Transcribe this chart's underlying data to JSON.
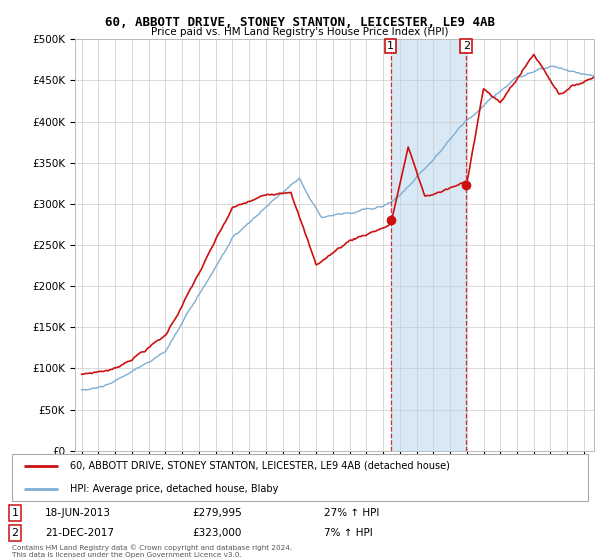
{
  "title": "60, ABBOTT DRIVE, STONEY STANTON, LEICESTER, LE9 4AB",
  "subtitle": "Price paid vs. HM Land Registry's House Price Index (HPI)",
  "ylim": [
    0,
    500000
  ],
  "yticks": [
    0,
    50000,
    100000,
    150000,
    200000,
    250000,
    300000,
    350000,
    400000,
    450000,
    500000
  ],
  "ytick_labels": [
    "£0",
    "£50K",
    "£100K",
    "£150K",
    "£200K",
    "£250K",
    "£300K",
    "£350K",
    "£400K",
    "£450K",
    "£500K"
  ],
  "hpi_color": "#7eaed4",
  "price_color": "#cc1111",
  "marker1_year": 2013.46,
  "marker2_year": 2017.97,
  "marker1_price": 279995,
  "marker2_price": 323000,
  "legend_price": "60, ABBOTT DRIVE, STONEY STANTON, LEICESTER, LE9 4AB (detached house)",
  "legend_hpi": "HPI: Average price, detached house, Blaby",
  "background_color": "#ffffff",
  "plot_background": "#ffffff",
  "grid_color": "#cccccc",
  "span_color": "#d8e8f4"
}
